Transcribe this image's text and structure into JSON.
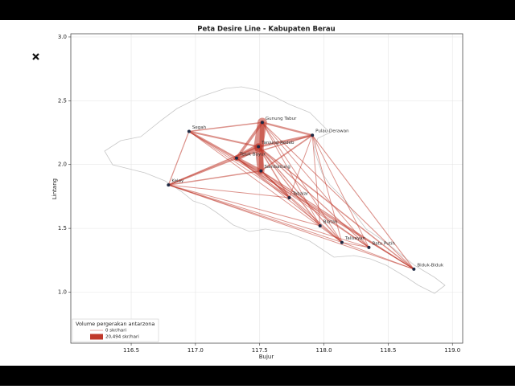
{
  "chart_data": {
    "type": "network",
    "title": "Peta Desire Line - Kabupaten Berau",
    "x_label": "Bujur",
    "y_label": "Lintang",
    "xlim": [
      116.03,
      119.08
    ],
    "ylim": [
      0.6,
      3.025
    ],
    "xticks": [
      116.5,
      {
        "value": 117,
        "label": "117.0"
      },
      117.5,
      {
        "value": 118,
        "label": "118.0"
      },
      118.5,
      {
        "value": 119,
        "label": "119.0"
      }
    ],
    "yticks": [
      {
        "value": 1,
        "label": "1.0"
      },
      1.5,
      {
        "value": 2,
        "label": "2.0"
      },
      2.5,
      {
        "value": 3,
        "label": "3.0"
      }
    ],
    "grid": true,
    "link_color": "#c0392b",
    "node_color": "#1f2a44",
    "nodes": [
      {
        "name": "Segah",
        "lon": 116.95,
        "lat": 2.26
      },
      {
        "name": "Gunung Tabur",
        "lon": 117.52,
        "lat": 2.33
      },
      {
        "name": "Pulau Derawan",
        "lon": 117.91,
        "lat": 2.23
      },
      {
        "name": "Tanjung Redeb",
        "lon": 117.49,
        "lat": 2.14
      },
      {
        "name": "Teluk Bayur",
        "lon": 117.32,
        "lat": 2.05
      },
      {
        "name": "Sambaliung",
        "lon": 117.51,
        "lat": 1.95
      },
      {
        "name": "Kelay",
        "lon": 116.79,
        "lat": 1.84
      },
      {
        "name": "Tabalar",
        "lon": 117.73,
        "lat": 1.74
      },
      {
        "name": "Biatan",
        "lon": 117.97,
        "lat": 1.52
      },
      {
        "name": "Talisayan",
        "lon": 118.14,
        "lat": 1.39
      },
      {
        "name": "Batu Putih",
        "lon": 118.35,
        "lat": 1.35
      },
      {
        "name": "Biduk-Biduk",
        "lon": 118.7,
        "lat": 1.18
      }
    ],
    "links": [
      {
        "source": 1,
        "target": 3,
        "value": 20494
      },
      {
        "source": 3,
        "target": 5,
        "value": 15000
      },
      {
        "source": 1,
        "target": 5,
        "value": 9000
      },
      {
        "source": 3,
        "target": 4,
        "value": 12000
      },
      {
        "source": 4,
        "target": 5,
        "value": 6000
      },
      {
        "source": 1,
        "target": 4,
        "value": 5000
      },
      {
        "source": 2,
        "target": 3,
        "value": 4000
      },
      {
        "source": 2,
        "target": 1,
        "value": 3000
      },
      {
        "source": 0,
        "target": 4,
        "value": 3000
      },
      {
        "source": 0,
        "target": 3,
        "value": 2500
      },
      {
        "source": 0,
        "target": 1,
        "value": 1500
      },
      {
        "source": 6,
        "target": 4,
        "value": 2500
      },
      {
        "source": 6,
        "target": 3,
        "value": 2000
      },
      {
        "source": 6,
        "target": 5,
        "value": 1500
      },
      {
        "source": 6,
        "target": 0,
        "value": 1000
      },
      {
        "source": 2,
        "target": 5,
        "value": 2000
      },
      {
        "source": 2,
        "target": 4,
        "value": 1500
      },
      {
        "source": 7,
        "target": 3,
        "value": 1500
      },
      {
        "source": 7,
        "target": 5,
        "value": 1200
      },
      {
        "source": 8,
        "target": 3,
        "value": 1000
      },
      {
        "source": 9,
        "target": 3,
        "value": 1200
      },
      {
        "source": 10,
        "target": 3,
        "value": 1000
      },
      {
        "source": 11,
        "target": 3,
        "value": 1500
      },
      {
        "source": 11,
        "target": 5,
        "value": 1000
      },
      {
        "source": 11,
        "target": 2,
        "value": 800
      },
      {
        "source": 11,
        "target": 6,
        "value": 600
      },
      {
        "source": 11,
        "target": 1,
        "value": 700
      },
      {
        "source": 9,
        "target": 6,
        "value": 500
      },
      {
        "source": 10,
        "target": 6,
        "value": 500
      },
      {
        "source": 8,
        "target": 6,
        "value": 500
      },
      {
        "source": 9,
        "target": 2,
        "value": 500
      },
      {
        "source": 10,
        "target": 2,
        "value": 500
      },
      {
        "source": 8,
        "target": 2,
        "value": 500
      },
      {
        "source": 7,
        "target": 2,
        "value": 500
      },
      {
        "source": 11,
        "target": 0,
        "value": 400
      },
      {
        "source": 9,
        "target": 0,
        "value": 400
      },
      {
        "source": 7,
        "target": 0,
        "value": 400
      },
      {
        "source": 10,
        "target": 1,
        "value": 500
      },
      {
        "source": 9,
        "target": 1,
        "value": 500
      },
      {
        "source": 8,
        "target": 1,
        "value": 500
      },
      {
        "source": 7,
        "target": 6,
        "value": 500
      },
      {
        "source": 11,
        "target": 4,
        "value": 700
      },
      {
        "source": 9,
        "target": 4,
        "value": 600
      },
      {
        "source": 10,
        "target": 4,
        "value": 600
      },
      {
        "source": 9,
        "target": 5,
        "value": 700
      },
      {
        "source": 10,
        "target": 5,
        "value": 600
      },
      {
        "source": 11,
        "target": 9,
        "value": 400
      },
      {
        "source": 9,
        "target": 10,
        "value": 400
      },
      {
        "source": 7,
        "target": 4,
        "value": 800
      },
      {
        "source": 8,
        "target": 5,
        "value": 600
      }
    ],
    "legend": {
      "title": "Volume pergerakan antarzona",
      "items": [
        {
          "value": 0,
          "label": "0 skr/hari"
        },
        {
          "value": 20494,
          "label": "20,494 skr/hari"
        }
      ]
    }
  }
}
